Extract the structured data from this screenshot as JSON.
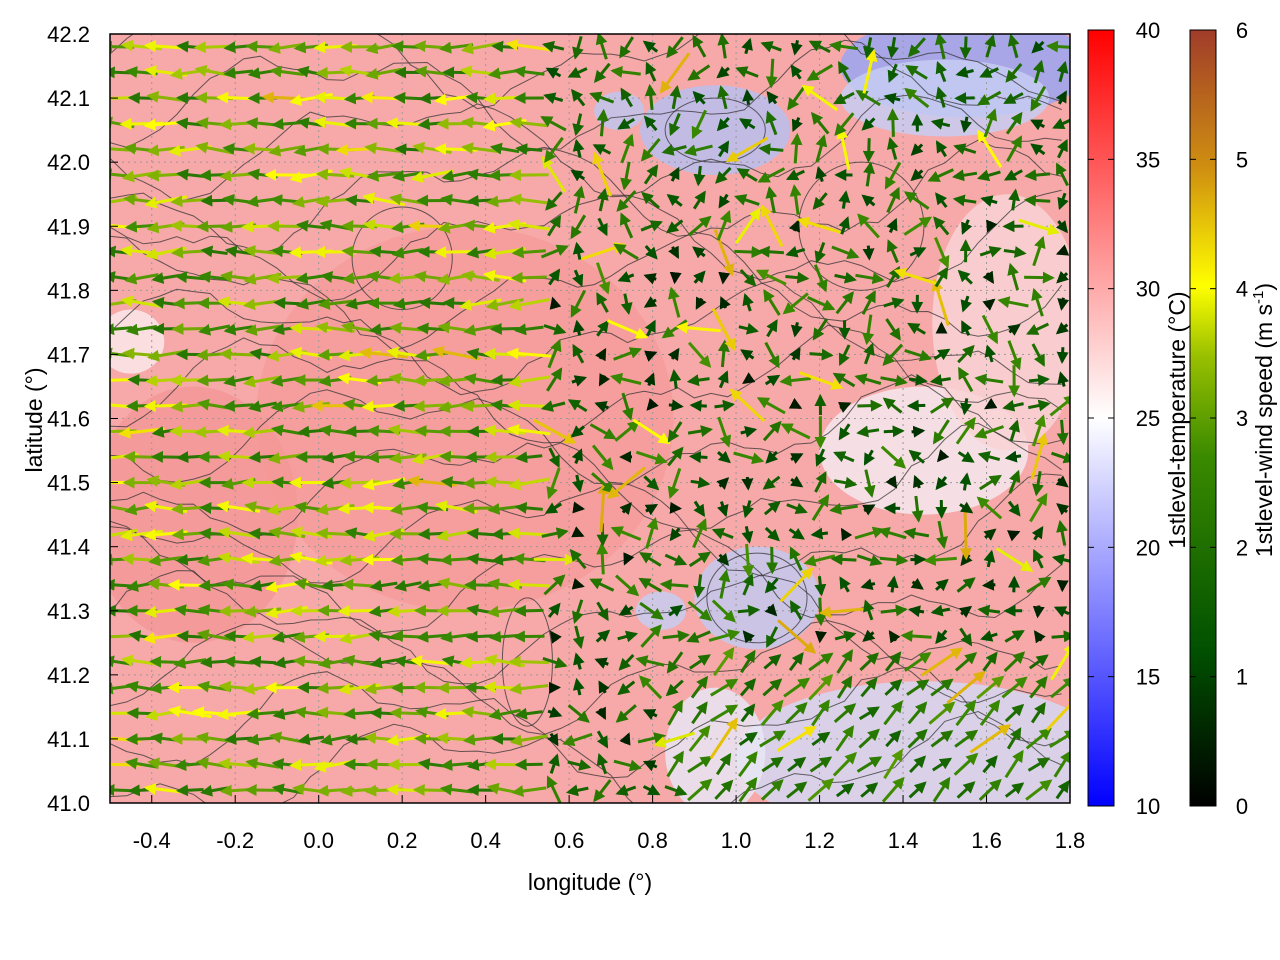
{
  "chart_data": {
    "type": "heatmap",
    "title": "",
    "xlabel": "longitude (°)",
    "ylabel": "latitude (°)",
    "xlim": [
      -0.5,
      1.8
    ],
    "ylim": [
      41.0,
      42.2
    ],
    "x_ticks": [
      "-0.4",
      "-0.2",
      "0.0",
      "0.2",
      "0.4",
      "0.6",
      "0.8",
      "1.0",
      "1.2",
      "1.4",
      "1.6",
      "1.8"
    ],
    "y_ticks": [
      "41.0",
      "41.1",
      "41.2",
      "41.3",
      "41.4",
      "41.5",
      "41.6",
      "41.7",
      "41.8",
      "41.9",
      "42.0",
      "42.1",
      "42.2"
    ],
    "grid": true,
    "overlays": [
      "temperature contour lines",
      "wind vector arrows"
    ],
    "colorbars": [
      {
        "label": "1stlevel-temperature (°C)",
        "range": [
          10,
          40
        ],
        "ticks": [
          "10",
          "15",
          "20",
          "25",
          "30",
          "35",
          "40"
        ],
        "colors": [
          "#0000ff",
          "#ffffff",
          "#ff0000"
        ]
      },
      {
        "label_main": "1stlevel-wind speed (m s",
        "label_sup": "-1",
        "label_end": ")",
        "range": [
          0,
          6
        ],
        "ticks": [
          "0",
          "1",
          "2",
          "3",
          "4",
          "5",
          "6"
        ],
        "colors": [
          "#000000",
          "#005500",
          "#338800",
          "#88bb00",
          "#ffff00",
          "#cc8800",
          "#a04028"
        ]
      }
    ]
  }
}
